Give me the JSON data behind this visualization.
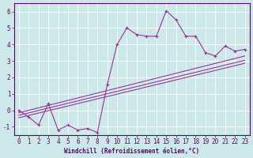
{
  "xlabel": "Windchill (Refroidissement éolien,°C)",
  "bg_color": "#cce8e8",
  "line_color": "#993399",
  "x_data": [
    0,
    1,
    2,
    3,
    4,
    5,
    6,
    7,
    8,
    9,
    10,
    11,
    12,
    13,
    14,
    15,
    16,
    17,
    18,
    19,
    20,
    21,
    22,
    23
  ],
  "y_main": [
    0.0,
    -0.4,
    -0.9,
    0.4,
    -1.2,
    -0.9,
    -1.2,
    -1.1,
    -1.35,
    1.55,
    4.0,
    5.0,
    4.6,
    4.5,
    4.5,
    6.05,
    5.5,
    4.5,
    4.5,
    3.5,
    3.3,
    3.9,
    3.6,
    3.7
  ],
  "y_reg1": [
    -0.45,
    -0.31,
    -0.17,
    -0.02,
    0.12,
    0.26,
    0.41,
    0.55,
    0.7,
    0.84,
    0.98,
    1.13,
    1.27,
    1.42,
    1.56,
    1.7,
    1.85,
    1.99,
    2.14,
    2.28,
    2.42,
    2.57,
    2.71,
    2.86
  ],
  "y_reg2": [
    -0.3,
    -0.16,
    -0.01,
    0.14,
    0.28,
    0.43,
    0.57,
    0.72,
    0.86,
    1.01,
    1.15,
    1.3,
    1.44,
    1.59,
    1.73,
    1.88,
    2.02,
    2.17,
    2.31,
    2.46,
    2.6,
    2.75,
    2.89,
    3.04
  ],
  "y_reg3": [
    -0.15,
    0.0,
    0.15,
    0.3,
    0.45,
    0.6,
    0.75,
    0.9,
    1.05,
    1.2,
    1.35,
    1.5,
    1.65,
    1.8,
    1.95,
    2.1,
    2.25,
    2.4,
    2.55,
    2.7,
    2.85,
    3.0,
    3.15,
    3.3
  ],
  "xlim": [
    -0.5,
    23.5
  ],
  "ylim": [
    -1.5,
    6.5
  ],
  "yticks": [
    -1,
    0,
    1,
    2,
    3,
    4,
    5,
    6
  ],
  "xticks": [
    0,
    1,
    2,
    3,
    4,
    5,
    6,
    7,
    8,
    9,
    10,
    11,
    12,
    13,
    14,
    15,
    16,
    17,
    18,
    19,
    20,
    21,
    22,
    23
  ],
  "grid_color": "#ffffff",
  "spine_color": "#660066",
  "tick_color": "#660066",
  "label_fontsize": 5.5,
  "xlabel_fontsize": 5.5
}
